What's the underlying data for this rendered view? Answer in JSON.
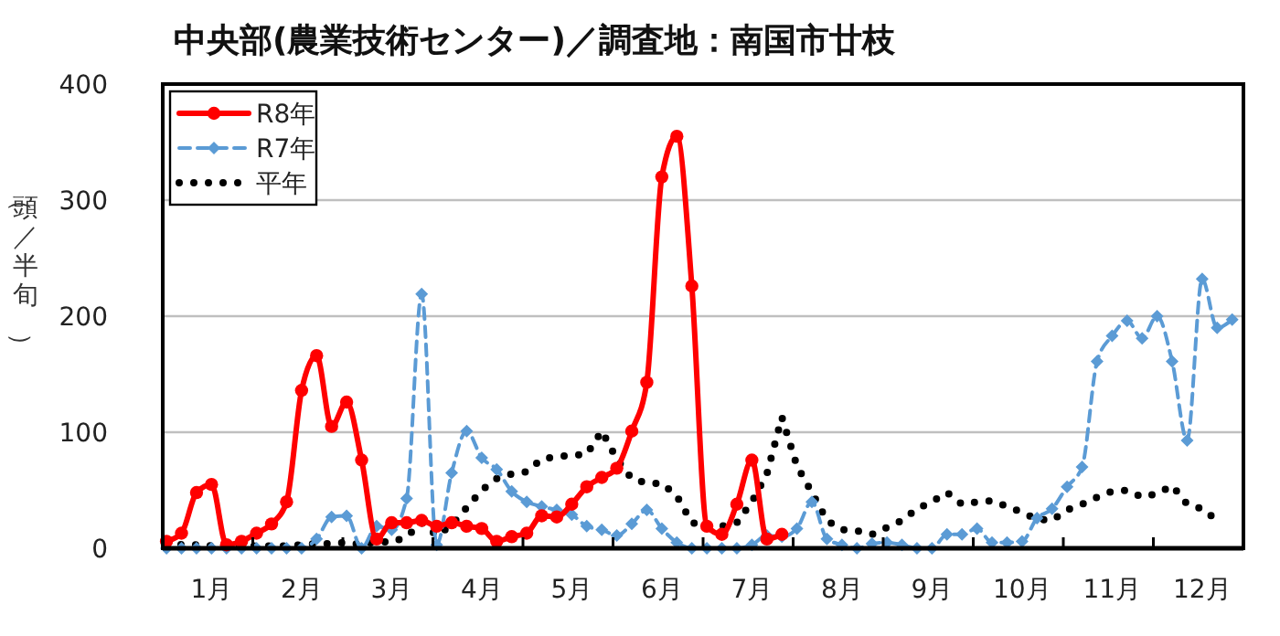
{
  "chart_data": {
    "type": "line",
    "title": "中央部(農業技術センター)／調査地：南国市廿枝",
    "ylabel": "（頭／半旬）",
    "categories": [
      null,
      null,
      null,
      "1月",
      null,
      null,
      null,
      null,
      null,
      "2月",
      null,
      null,
      null,
      null,
      null,
      "3月",
      null,
      null,
      null,
      null,
      null,
      "4月",
      null,
      null,
      null,
      null,
      null,
      "5月",
      null,
      null,
      null,
      null,
      null,
      "6月",
      null,
      null,
      null,
      null,
      null,
      "7月",
      null,
      null,
      null,
      null,
      null,
      "8月",
      null,
      null,
      null,
      null,
      null,
      "9月",
      null,
      null,
      null,
      null,
      null,
      "10月",
      null,
      null,
      null,
      null,
      null,
      "11月",
      null,
      null,
      null,
      null,
      null,
      "12月",
      null,
      null
    ],
    "ylim": [
      0,
      400
    ],
    "yticks": [
      0,
      100,
      200,
      300,
      400
    ],
    "grid": "y",
    "legend": "top left",
    "series": [
      {
        "name": "R8年",
        "color": "#ff0000",
        "marker": "circle",
        "line_style": "solid",
        "values": [
          6,
          13,
          48,
          55,
          3,
          6,
          13,
          21,
          40,
          136,
          166,
          105,
          126,
          76,
          8,
          22,
          22,
          24,
          19,
          22,
          19,
          17,
          6,
          10,
          13,
          28,
          27,
          38,
          53,
          61,
          69,
          101,
          143,
          320,
          355,
          226,
          19,
          12,
          38,
          76,
          8,
          12,
          null,
          null,
          null,
          null,
          null,
          null,
          null,
          null,
          null,
          null,
          null,
          null,
          null,
          null,
          null,
          null,
          null,
          null,
          null,
          null,
          null,
          null,
          null,
          null,
          null,
          null,
          null,
          null,
          null,
          null
        ]
      },
      {
        "name": "R7年",
        "color": "#5b9bd5",
        "marker": "diamond",
        "line_style": "dashed",
        "values": [
          0,
          0,
          0,
          0,
          0,
          0,
          0,
          0,
          0,
          0,
          8,
          27,
          28,
          0,
          19,
          16,
          43,
          219,
          3,
          65,
          101,
          78,
          68,
          49,
          40,
          36,
          33,
          29,
          19,
          16,
          11,
          21,
          33,
          17,
          5,
          0,
          0,
          0,
          0,
          3,
          11,
          10,
          17,
          40,
          8,
          3,
          0,
          4,
          5,
          3,
          0,
          0,
          12,
          12,
          17,
          5,
          5,
          6,
          26,
          34,
          53,
          70,
          161,
          183,
          196,
          181,
          200,
          161,
          93,
          232,
          190,
          197
        ]
      },
      {
        "name": "平年",
        "color": "#000000",
        "marker": "none",
        "line_style": "dotted",
        "values": [
          5,
          3,
          3,
          2,
          2,
          2,
          2,
          2,
          2,
          3,
          4,
          4,
          5,
          3,
          6,
          5,
          10,
          22,
          11,
          20,
          35,
          50,
          60,
          64,
          66,
          77,
          79,
          80,
          81,
          101,
          77,
          60,
          56,
          56,
          45,
          22,
          20,
          19,
          22,
          40,
          64,
          113,
          71,
          48,
          24,
          16,
          15,
          12,
          18,
          24,
          34,
          40,
          48,
          38,
          40,
          41,
          36,
          31,
          25,
          24,
          33,
          38,
          44,
          49,
          50,
          44,
          47,
          54,
          38,
          34,
          24,
          null
        ]
      }
    ]
  }
}
